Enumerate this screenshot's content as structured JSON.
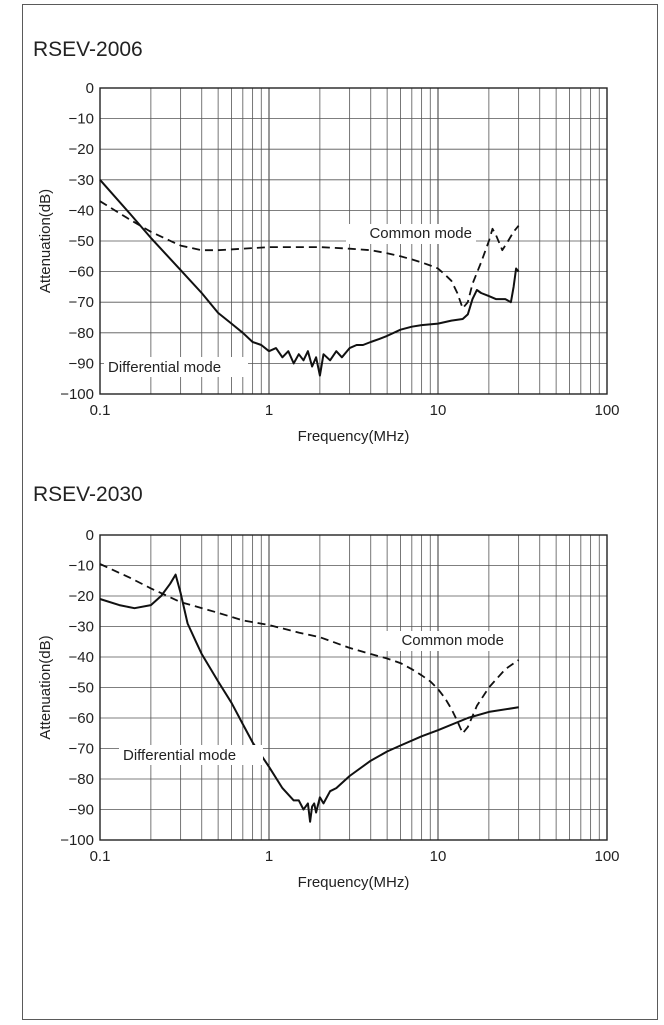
{
  "chart_data": [
    {
      "type": "line",
      "title": "RSEV-2006",
      "xlabel": "Frequency(MHz)",
      "ylabel": "Attenuation(dB)",
      "xscale": "log",
      "xlim": [
        0.1,
        100
      ],
      "ylim": [
        -100,
        0
      ],
      "x_ticks": [
        "0.1",
        "1",
        "10",
        "100"
      ],
      "y_ticks": [
        "0",
        "−10",
        "−20",
        "−30",
        "−40",
        "−50",
        "−60",
        "−70",
        "−80",
        "−90",
        "−100"
      ],
      "grid": true,
      "series": [
        {
          "name": "Common mode",
          "style": "dashed",
          "x": [
            0.1,
            0.15,
            0.2,
            0.3,
            0.4,
            0.5,
            0.7,
            1,
            1.5,
            2,
            3,
            4,
            5,
            6,
            7,
            8,
            9,
            10,
            11,
            12,
            13,
            14,
            15,
            16,
            18,
            20,
            21,
            22,
            24,
            26,
            28,
            30
          ],
          "values": [
            -37,
            -43,
            -47,
            -51.5,
            -53,
            -53,
            -52.5,
            -52,
            -52,
            -52,
            -52.5,
            -53,
            -54,
            -55,
            -56,
            -57,
            -58,
            -59,
            -61,
            -63,
            -67,
            -72,
            -70,
            -64,
            -57,
            -50,
            -46,
            -48,
            -53,
            -50,
            -47,
            -45
          ]
        },
        {
          "name": "Differential mode",
          "style": "solid",
          "x": [
            0.1,
            0.15,
            0.2,
            0.3,
            0.4,
            0.5,
            0.6,
            0.7,
            0.8,
            0.9,
            1.0,
            1.1,
            1.2,
            1.3,
            1.4,
            1.5,
            1.6,
            1.7,
            1.8,
            1.9,
            2.0,
            2.1,
            2.3,
            2.5,
            2.7,
            3.0,
            3.3,
            3.6,
            4.0,
            4.5,
            5,
            6,
            7,
            8,
            10,
            12,
            14,
            15,
            16,
            17,
            18,
            20,
            22,
            25,
            27,
            28,
            29,
            30
          ],
          "values": [
            -30,
            -41,
            -49,
            -59.5,
            -67,
            -73.5,
            -77,
            -80,
            -83,
            -84,
            -86,
            -85,
            -88,
            -86,
            -90,
            -87,
            -89,
            -86,
            -91,
            -88,
            -94,
            -87,
            -89,
            -86,
            -88,
            -85,
            -84,
            -84,
            -83,
            -82,
            -81,
            -79,
            -78,
            -77.5,
            -77,
            -76,
            -75.5,
            -74,
            -69,
            -66,
            -67,
            -68,
            -69,
            -69,
            -70,
            -65,
            -59,
            -60
          ]
        }
      ]
    },
    {
      "type": "line",
      "title": "RSEV-2030",
      "xlabel": "Frequency(MHz)",
      "ylabel": "Attenuation(dB)",
      "xscale": "log",
      "xlim": [
        0.1,
        100
      ],
      "ylim": [
        -100,
        0
      ],
      "x_ticks": [
        "0.1",
        "1",
        "10",
        "100"
      ],
      "y_ticks": [
        "0",
        "−10",
        "−20",
        "−30",
        "−40",
        "−50",
        "−60",
        "−70",
        "−80",
        "−90",
        "−100"
      ],
      "grid": true,
      "series": [
        {
          "name": "Common mode",
          "style": "dashed",
          "x": [
            0.1,
            0.15,
            0.2,
            0.3,
            0.5,
            0.7,
            1,
            1.5,
            2,
            3,
            4,
            5,
            6,
            7,
            8,
            9,
            10,
            11,
            12,
            13,
            14,
            15,
            17,
            20,
            25,
            30
          ],
          "values": [
            -9.5,
            -14,
            -17.5,
            -22,
            -25.5,
            -28,
            -29.5,
            -32,
            -33.5,
            -37,
            -39,
            -40.5,
            -42,
            -44,
            -46,
            -48,
            -50.5,
            -53.5,
            -57,
            -61,
            -65,
            -63,
            -56,
            -50,
            -44,
            -41
          ]
        },
        {
          "name": "Differential mode",
          "style": "solid",
          "x": [
            0.1,
            0.13,
            0.16,
            0.2,
            0.23,
            0.26,
            0.28,
            0.3,
            0.33,
            0.37,
            0.4,
            0.5,
            0.6,
            0.7,
            0.8,
            1.0,
            1.2,
            1.4,
            1.5,
            1.6,
            1.7,
            1.75,
            1.8,
            1.85,
            1.9,
            2.0,
            2.1,
            2.3,
            2.5,
            3,
            4,
            5,
            6,
            8,
            10,
            15,
            20,
            30
          ],
          "values": [
            -21,
            -23,
            -24,
            -23,
            -20,
            -16,
            -13,
            -19,
            -29,
            -35,
            -39,
            -48,
            -55,
            -62,
            -68,
            -76,
            -83,
            -87,
            -87,
            -90,
            -88,
            -94,
            -89,
            -88,
            -91,
            -86,
            -88,
            -84,
            -83,
            -79,
            -74,
            -71,
            -69,
            -66,
            -64,
            -60,
            -58,
            -56.5
          ]
        }
      ]
    }
  ]
}
